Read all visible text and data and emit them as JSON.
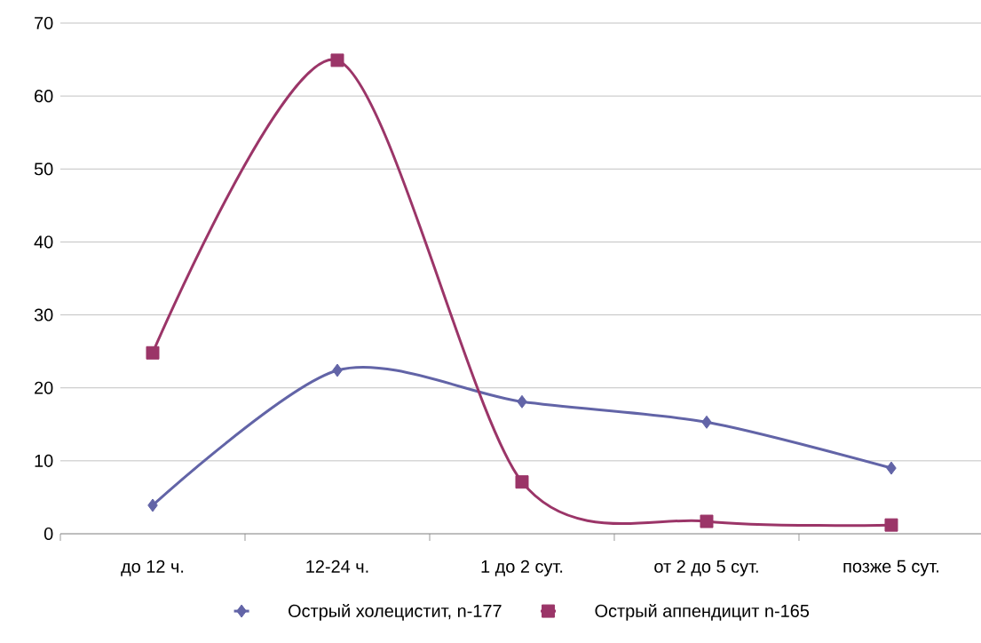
{
  "chart_data": {
    "type": "line",
    "categories": [
      "до 12 ч.",
      "12-24 ч.",
      "1 до 2 сут.",
      "от 2 до 5 сут.",
      "позже 5 сут."
    ],
    "series": [
      {
        "name": "Острый холецистит, n-177",
        "color": "#6264a7",
        "marker": "diamond",
        "values": [
          3.9,
          22.4,
          18.1,
          15.3,
          9.0
        ]
      },
      {
        "name": "Острый аппендицит n-165",
        "color": "#9b3568",
        "marker": "square",
        "values": [
          24.8,
          64.9,
          7.1,
          1.7,
          1.2
        ]
      }
    ],
    "ylim": [
      0,
      70
    ],
    "yticks": [
      0,
      10,
      20,
      30,
      40,
      50,
      60,
      70
    ],
    "grid": "y",
    "legend": "bottom",
    "line_style": "solid"
  }
}
